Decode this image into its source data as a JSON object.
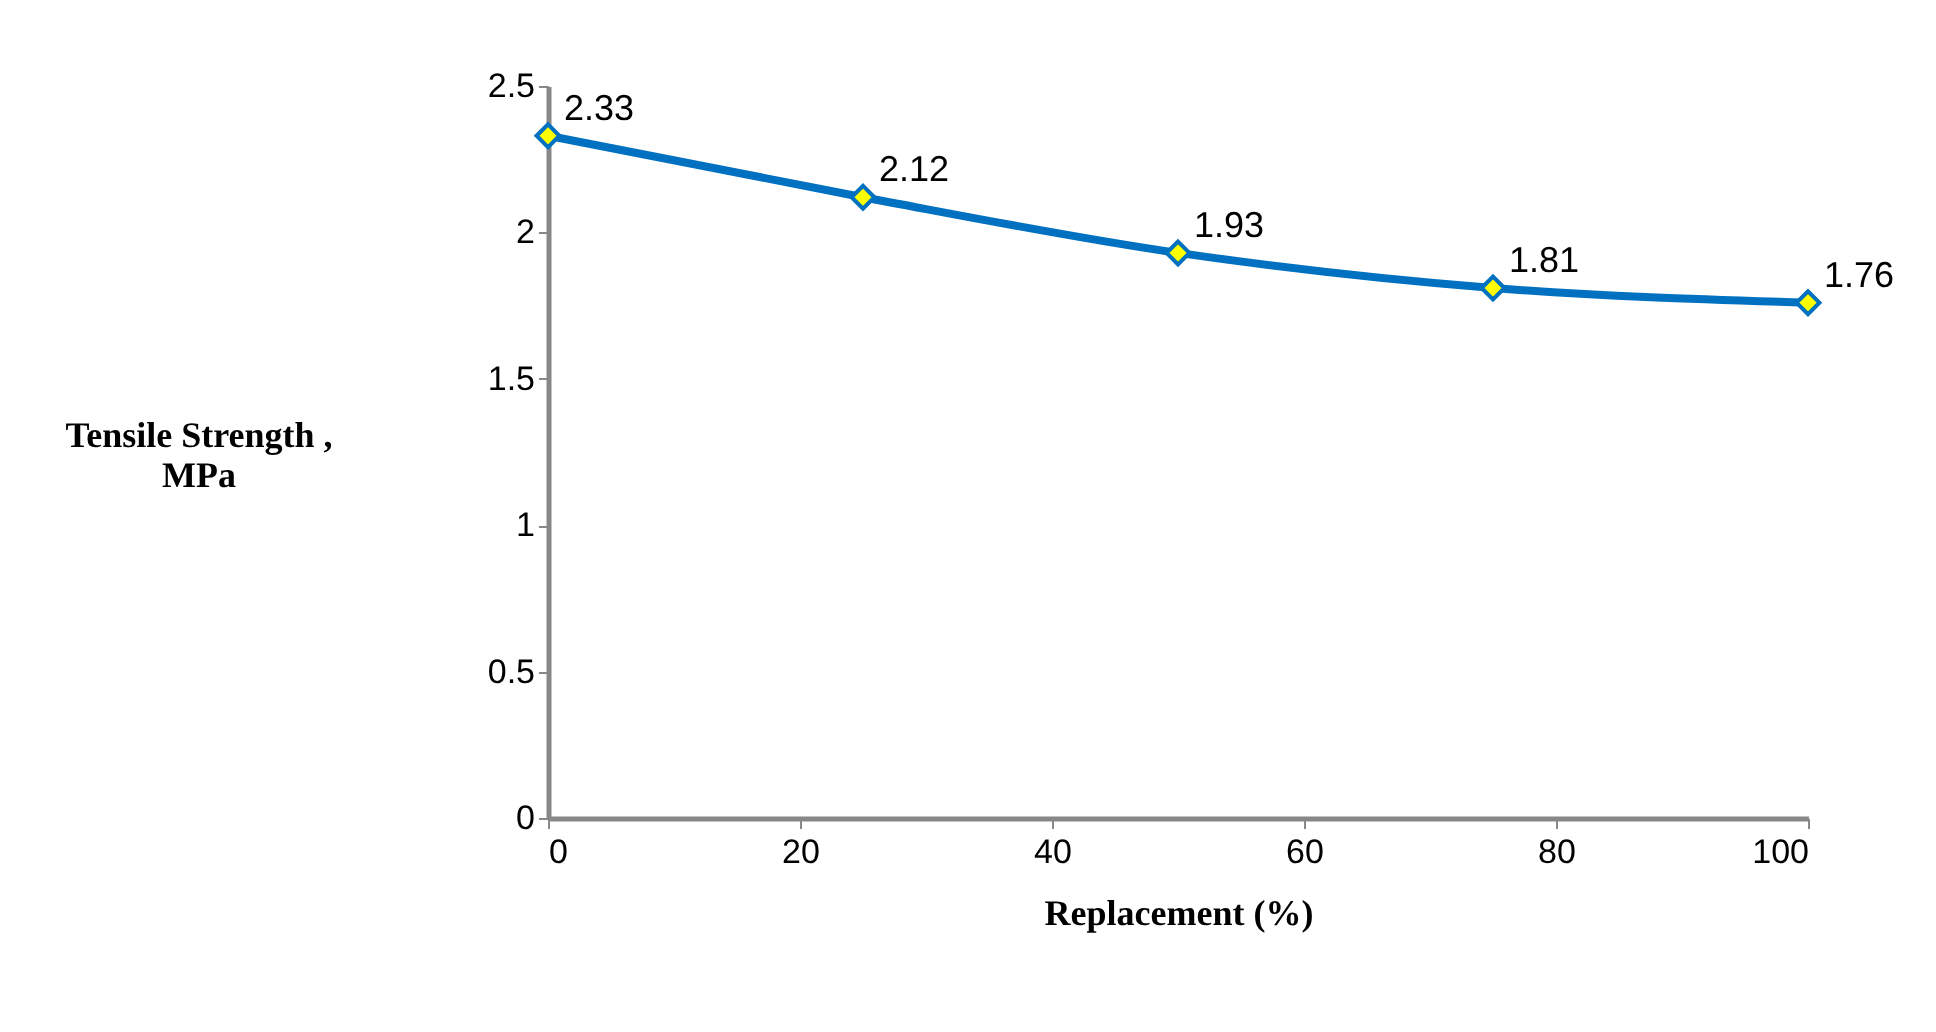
{
  "chart_data": {
    "type": "line",
    "xlabel": "Replacement (%)",
    "ylabel": "Tensile Strength , MPa",
    "x": [
      0,
      25,
      50,
      75,
      100
    ],
    "series": [
      {
        "color": "#0070c0",
        "values": [
          2.33,
          2.12,
          1.93,
          1.81,
          1.76
        ]
      }
    ],
    "xlim": [
      0,
      100
    ],
    "xticks": [
      0,
      20,
      40,
      60,
      80,
      100
    ],
    "ylim": [
      0,
      2.5
    ],
    "yticks": [
      0,
      0.5,
      1,
      1.5,
      2,
      2.5
    ],
    "grid": false,
    "marker": "diamond",
    "data_labels": true
  }
}
